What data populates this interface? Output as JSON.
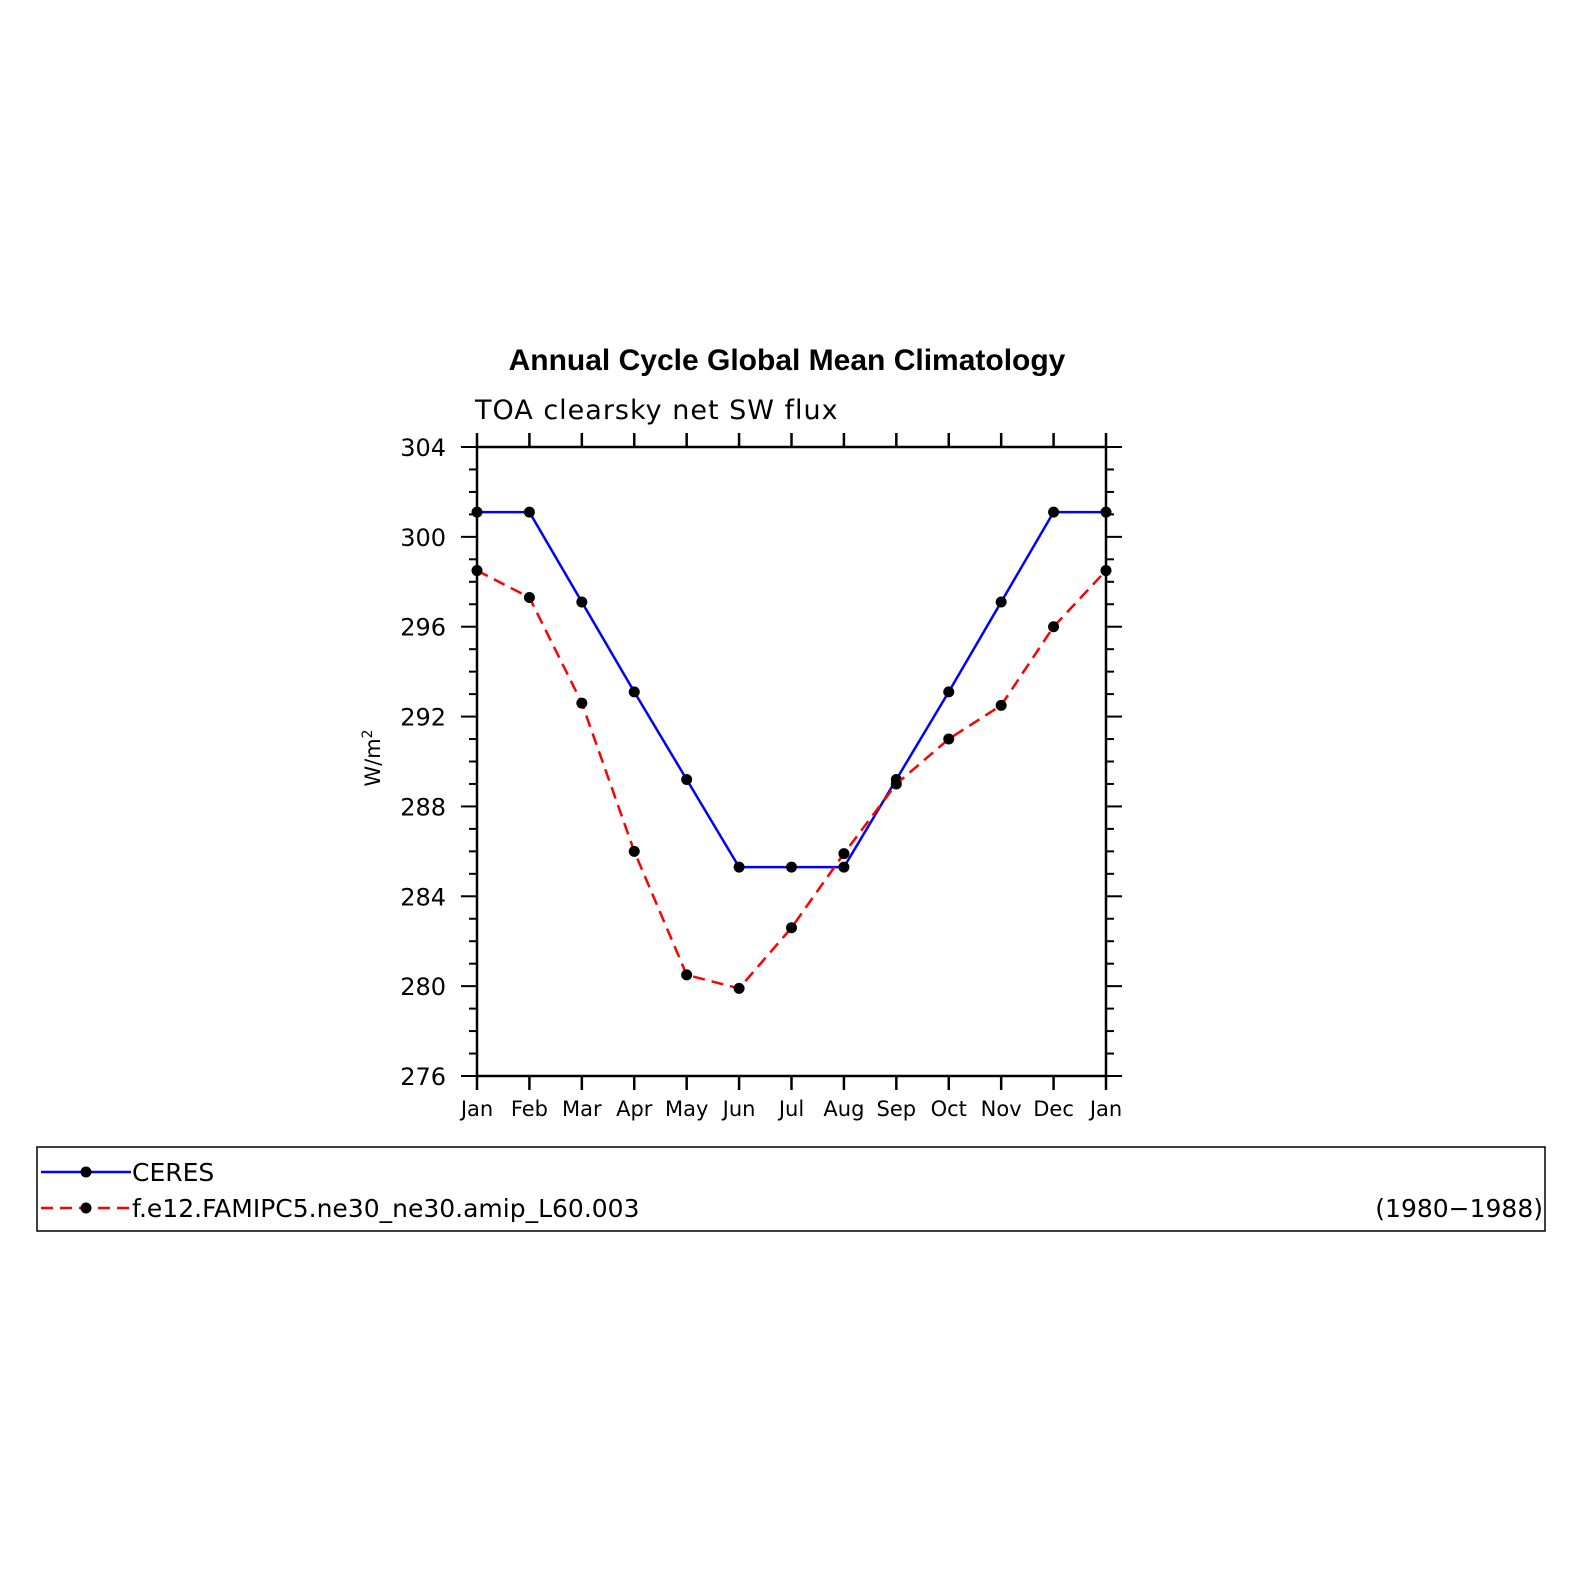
{
  "chart_data": {
    "type": "line",
    "title": "Annual Cycle Global Mean Climatology",
    "subtitle": "TOA clearsky net SW flux",
    "ylabel": "W/m",
    "ylabel_sup": "2",
    "ylim": [
      276,
      304
    ],
    "yticks": [
      276,
      280,
      284,
      288,
      292,
      296,
      300,
      304
    ],
    "categories": [
      "Jan",
      "Feb",
      "Mar",
      "Apr",
      "May",
      "Jun",
      "Jul",
      "Aug",
      "Sep",
      "Oct",
      "Nov",
      "Dec",
      "Jan"
    ],
    "series": [
      {
        "name": "CERES",
        "color": "#0000ff",
        "dash": "solid",
        "values": [
          301.1,
          301.1,
          297.1,
          293.1,
          289.2,
          285.3,
          285.3,
          285.3,
          289.2,
          293.1,
          297.1,
          301.1,
          301.1
        ]
      },
      {
        "name": "f.e12.FAMIPC5.ne30_ne30.amip_L60.003",
        "color": "#ff0000",
        "dash": "dashed",
        "values": [
          298.5,
          297.3,
          292.6,
          286.0,
          280.5,
          279.9,
          282.6,
          285.9,
          289.0,
          291.0,
          292.5,
          296.0,
          298.5
        ]
      }
    ],
    "legend": {
      "placement": "bottom",
      "period": "(1980−1988)"
    }
  }
}
